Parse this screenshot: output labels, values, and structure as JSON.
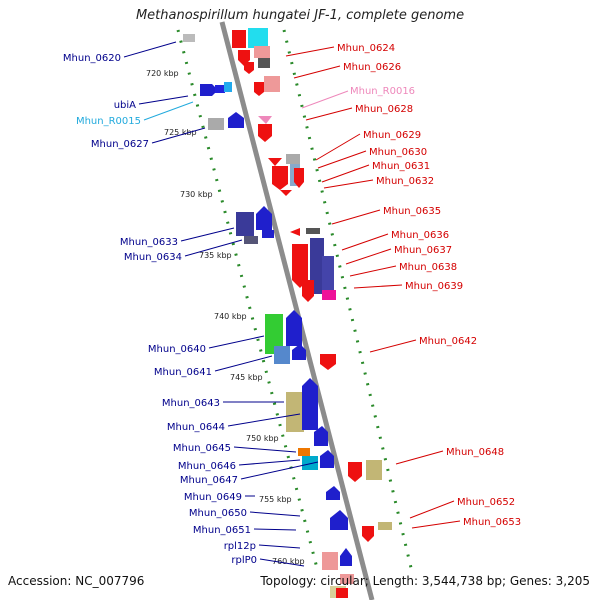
{
  "title": "Methanospirillum hungatei JF-1, complete genome",
  "footer": {
    "accession": "Accession: NC_007796",
    "summary": "Topology: circular; Length: 3,544,738 bp; Genes: 3,205"
  },
  "colors": {
    "background": "#ffffff",
    "backbone": "#8c8c8c",
    "dotted_track": "#2a8a2a",
    "left_label": "#00008b",
    "right_label": "#d40000",
    "pink_label": "#ee88bb",
    "cyan_label": "#22aadd"
  },
  "kbp_ticks": [
    "720 kbp",
    "725 kbp",
    "730 kbp",
    "735 kbp",
    "740 kbp",
    "745 kbp",
    "750 kbp",
    "755 kbp",
    "760 kbp"
  ],
  "left_labels": [
    "Mhun_0620",
    "ubiA",
    "Mhun_R0015",
    "Mhun_0627",
    "Mhun_0633",
    "Mhun_0634",
    "Mhun_0640",
    "Mhun_0641",
    "Mhun_0643",
    "Mhun_0644",
    "Mhun_0645",
    "Mhun_0646",
    "Mhun_0647",
    "Mhun_0649",
    "Mhun_0650",
    "Mhun_0651",
    "rpl12p",
    "rplP0"
  ],
  "right_labels": [
    "Mhun_0624",
    "Mhun_0626",
    "Mhun_R0016",
    "Mhun_0628",
    "Mhun_0629",
    "Mhun_0630",
    "Mhun_0631",
    "Mhun_0632",
    "Mhun_0635",
    "Mhun_0636",
    "Mhun_0637",
    "Mhun_0638",
    "Mhun_0639",
    "Mhun_0642",
    "Mhun_0648",
    "Mhun_0652",
    "Mhun_0653"
  ]
}
